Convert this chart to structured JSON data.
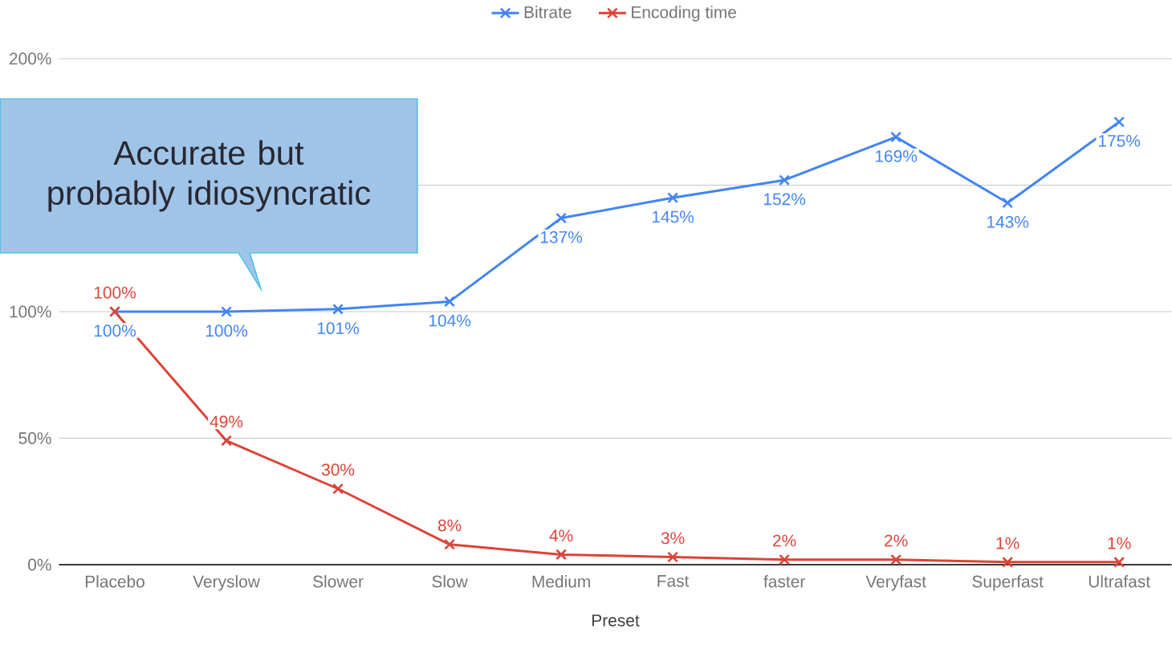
{
  "chart_data": {
    "type": "line",
    "xlabel": "Preset",
    "categories": [
      "Placebo",
      "Veryslow",
      "Slower",
      "Slow",
      "Medium",
      "Fast",
      "faster",
      "Veryfast",
      "Superfast",
      "Ultrafast"
    ],
    "series": [
      {
        "name": "Bitrate",
        "color": "#4285f4",
        "values": [
          100,
          100,
          101,
          104,
          137,
          145,
          152,
          169,
          143,
          175
        ],
        "value_labels": [
          "100%",
          "100%",
          "101%",
          "104%",
          "137%",
          "145%",
          "152%",
          "169%",
          "143%",
          "175%"
        ]
      },
      {
        "name": "Encoding time",
        "color": "#db4437",
        "values": [
          100,
          49,
          30,
          8,
          4,
          3,
          2,
          2,
          1,
          1
        ],
        "value_labels": [
          "100%",
          "49%",
          "30%",
          "8%",
          "4%",
          "3%",
          "2%",
          "2%",
          "1%",
          "1%"
        ]
      }
    ],
    "ylim": [
      0,
      200
    ],
    "yticks": [
      {
        "value": 0,
        "label": "0%"
      },
      {
        "value": 50,
        "label": "50%"
      },
      {
        "value": 100,
        "label": "100%"
      },
      {
        "value": 150,
        "label": null
      },
      {
        "value": 200,
        "label": "200%"
      }
    ],
    "grid": "y",
    "legend": "top",
    "marker": "cross",
    "line_style": "solid",
    "annotations": [
      "Accurate but probably idiosyncratic"
    ]
  }
}
